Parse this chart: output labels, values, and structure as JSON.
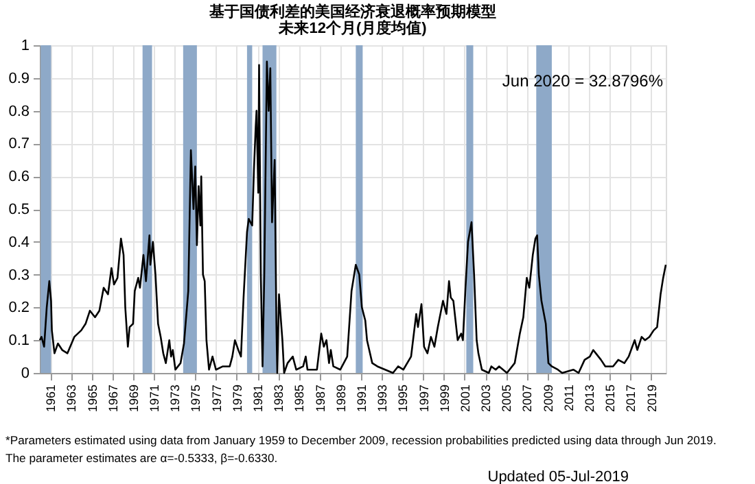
{
  "chart_data": {
    "type": "line",
    "title": "基于国债利差的美国经济衰退概率预期模型",
    "subtitle": "未来12个月(月度均值)",
    "x": [
      "1960-01",
      "1960-03",
      "1960-06",
      "1960-09",
      "1960-12",
      "1961-02",
      "1961-03",
      "1961-06",
      "1961-10",
      "1962-03",
      "1962-09",
      "1963-05",
      "1964-01",
      "1964-06",
      "1964-11",
      "1965-05",
      "1965-10",
      "1966-03",
      "1966-08",
      "1966-12",
      "1967-03",
      "1967-07",
      "1967-11",
      "1968-02",
      "1968-04",
      "1968-07",
      "1968-09",
      "1969-01",
      "1969-03",
      "1969-07",
      "1969-09",
      "1970-01",
      "1970-04",
      "1970-08",
      "1970-09",
      "1970-12",
      "1971-03",
      "1971-06",
      "1971-09",
      "1971-12",
      "1972-03",
      "1972-07",
      "1972-09",
      "1972-11",
      "1973-02",
      "1973-08",
      "1973-12",
      "1974-05",
      "1974-08",
      "1974-11",
      "1975-01",
      "1975-03",
      "1975-05",
      "1975-07",
      "1975-08",
      "1975-10",
      "1975-12",
      "1976-02",
      "1976-05",
      "1976-09",
      "1977-01",
      "1977-09",
      "1978-05",
      "1978-08",
      "1978-11",
      "1979-03",
      "1979-06",
      "1979-09",
      "1980-01",
      "1980-03",
      "1980-07",
      "1980-09",
      "1980-11",
      "1980-12",
      "1981-02",
      "1981-03",
      "1981-05",
      "1981-07",
      "1981-09",
      "1981-12",
      "1982-02",
      "1982-04",
      "1982-06",
      "1982-09",
      "1982-11",
      "1982-12",
      "1983-02",
      "1983-06",
      "1983-08",
      "1983-12",
      "1984-06",
      "1984-10",
      "1985-06",
      "1985-09",
      "1985-11",
      "1986-10",
      "1987-03",
      "1987-06",
      "1987-09",
      "1987-12",
      "1988-02",
      "1988-05",
      "1989-01",
      "1989-09",
      "1990-02",
      "1990-07",
      "1990-11",
      "1991-02",
      "1991-06",
      "1991-08",
      "1992-02",
      "1992-08",
      "1994-02",
      "1994-08",
      "1995-02",
      "1995-11",
      "1996-05",
      "1996-07",
      "1996-11",
      "1997-02",
      "1997-06",
      "1997-10",
      "1998-02",
      "1998-06",
      "1998-12",
      "1999-04",
      "1999-07",
      "1999-09",
      "1999-12",
      "2000-05",
      "2000-09",
      "2000-11",
      "2001-02",
      "2001-05",
      "2001-09",
      "2001-12",
      "2002-03",
      "2002-05",
      "2002-09",
      "2003-05",
      "2003-08",
      "2004-01",
      "2004-05",
      "2005-02",
      "2005-11",
      "2006-05",
      "2006-09",
      "2007-01",
      "2007-04",
      "2007-08",
      "2007-11",
      "2008-01",
      "2008-03",
      "2008-06",
      "2008-11",
      "2009-02",
      "2009-06",
      "2010-01",
      "2010-06",
      "2011-07",
      "2012-01",
      "2012-08",
      "2013-02",
      "2013-06",
      "2013-09",
      "2014-03",
      "2014-08",
      "2015-05",
      "2015-11",
      "2016-06",
      "2016-11",
      "2017-06",
      "2017-09",
      "2018-02",
      "2018-06",
      "2018-11",
      "2019-04",
      "2019-08",
      "2019-12",
      "2020-03",
      "2020-06"
    ],
    "series": [
      {
        "color": "#000000",
        "values": [
          0.1,
          0.11,
          0.08,
          0.2,
          0.28,
          0.22,
          0.13,
          0.06,
          0.09,
          0.07,
          0.06,
          0.11,
          0.13,
          0.15,
          0.19,
          0.17,
          0.19,
          0.26,
          0.24,
          0.32,
          0.27,
          0.29,
          0.41,
          0.36,
          0.2,
          0.08,
          0.14,
          0.15,
          0.25,
          0.29,
          0.26,
          0.36,
          0.28,
          0.42,
          0.33,
          0.4,
          0.3,
          0.15,
          0.11,
          0.06,
          0.03,
          0.1,
          0.05,
          0.07,
          0.01,
          0.03,
          0.09,
          0.25,
          0.68,
          0.5,
          0.63,
          0.39,
          0.57,
          0.45,
          0.6,
          0.3,
          0.28,
          0.1,
          0.01,
          0.05,
          0.01,
          0.02,
          0.02,
          0.05,
          0.1,
          0.07,
          0.05,
          0.23,
          0.43,
          0.47,
          0.45,
          0.62,
          0.75,
          0.8,
          0.55,
          0.94,
          0.3,
          0.02,
          0.3,
          0.95,
          0.8,
          0.93,
          0.46,
          0.65,
          0.15,
          0.0,
          0.24,
          0.1,
          0.0,
          0.03,
          0.05,
          0.01,
          0.02,
          0.05,
          0.01,
          0.01,
          0.12,
          0.08,
          0.1,
          0.03,
          0.07,
          0.02,
          0.01,
          0.05,
          0.25,
          0.33,
          0.3,
          0.2,
          0.16,
          0.1,
          0.03,
          0.02,
          0.0,
          0.02,
          0.01,
          0.05,
          0.18,
          0.14,
          0.21,
          0.08,
          0.06,
          0.11,
          0.08,
          0.14,
          0.22,
          0.18,
          0.28,
          0.23,
          0.22,
          0.1,
          0.12,
          0.1,
          0.26,
          0.4,
          0.46,
          0.3,
          0.1,
          0.06,
          0.01,
          0.0,
          0.02,
          0.01,
          0.02,
          0.0,
          0.03,
          0.12,
          0.17,
          0.29,
          0.26,
          0.36,
          0.41,
          0.42,
          0.3,
          0.22,
          0.15,
          0.03,
          0.02,
          0.01,
          0.0,
          0.01,
          0.0,
          0.04,
          0.05,
          0.07,
          0.06,
          0.04,
          0.02,
          0.02,
          0.04,
          0.03,
          0.05,
          0.1,
          0.07,
          0.11,
          0.1,
          0.11,
          0.13,
          0.14,
          0.24,
          0.29,
          0.33
        ]
      }
    ],
    "xlim": [
      "1960-01",
      "2020-06"
    ],
    "xticks": [
      "1961",
      "1963",
      "1965",
      "1967",
      "1969",
      "1971",
      "1973",
      "1975",
      "1977",
      "1979",
      "1981",
      "1983",
      "1985",
      "1987",
      "1989",
      "1991",
      "1993",
      "1995",
      "1997",
      "1999",
      "2001",
      "2003",
      "2005",
      "2007",
      "2009",
      "2011",
      "2013",
      "2015",
      "2017",
      "2019"
    ],
    "ylim": [
      0,
      1
    ],
    "yticks": [
      0,
      0.1,
      0.2,
      0.3,
      0.4,
      0.5,
      0.6,
      0.7,
      0.8,
      0.9,
      1
    ],
    "grid": true,
    "line_style": "solid",
    "marker": "none",
    "bands": [
      {
        "axis": "x",
        "from": "1960-02",
        "to": "1961-02",
        "color": "#8ea9c8"
      },
      {
        "axis": "x",
        "from": "1969-12",
        "to": "1970-11",
        "color": "#8ea9c8"
      },
      {
        "axis": "x",
        "from": "1973-11",
        "to": "1975-03",
        "color": "#8ea9c8"
      },
      {
        "axis": "x",
        "from": "1980-01",
        "to": "1980-07",
        "color": "#8ea9c8"
      },
      {
        "axis": "x",
        "from": "1981-07",
        "to": "1982-11",
        "color": "#8ea9c8"
      },
      {
        "axis": "x",
        "from": "1990-07",
        "to": "1991-03",
        "color": "#8ea9c8"
      },
      {
        "axis": "x",
        "from": "2001-03",
        "to": "2001-11",
        "color": "#8ea9c8"
      },
      {
        "axis": "x",
        "from": "2007-12",
        "to": "2009-06",
        "color": "#8ea9c8"
      }
    ],
    "annotations": [
      "Jun 2020 = 32.8796%",
      "*Parameters estimated using data from January 1959 to December 2009, recession probabilities predicted using data through Jun 2019.",
      "The parameter estimates are α=-0.5333, β=-0.6330.",
      "Updated 05-Jul-2019"
    ]
  }
}
